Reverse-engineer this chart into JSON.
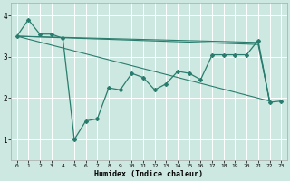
{
  "xlabel": "Humidex (Indice chaleur)",
  "bg_color": "#cce8e0",
  "line_color": "#2a7d6e",
  "grid_color": "#ffffff",
  "xlim": [
    -0.5,
    23.5
  ],
  "ylim": [
    0.5,
    4.3
  ],
  "yticks": [
    1,
    2,
    3,
    4
  ],
  "xticks": [
    0,
    1,
    2,
    3,
    4,
    5,
    6,
    7,
    8,
    9,
    10,
    11,
    12,
    13,
    14,
    15,
    16,
    17,
    18,
    19,
    20,
    21,
    22,
    23
  ],
  "series": [
    {
      "x": [
        0,
        1,
        2,
        3,
        4,
        5,
        6,
        7,
        8,
        9,
        10,
        11,
        12,
        13,
        14,
        15,
        16,
        17,
        18,
        19,
        20,
        21,
        22,
        23
      ],
      "y": [
        3.5,
        3.9,
        3.55,
        3.55,
        3.45,
        1.0,
        1.45,
        1.5,
        2.25,
        2.2,
        2.6,
        2.5,
        2.2,
        2.35,
        2.65,
        2.6,
        2.45,
        3.05,
        3.05,
        3.05,
        3.05,
        3.4,
        1.9,
        1.93
      ],
      "has_markers": true
    },
    {
      "x": [
        0,
        21,
        22
      ],
      "y": [
        3.5,
        3.35,
        1.93
      ],
      "has_markers": false
    },
    {
      "x": [
        0,
        21,
        22
      ],
      "y": [
        3.5,
        3.3,
        1.93
      ],
      "has_markers": false
    },
    {
      "x": [
        0,
        22
      ],
      "y": [
        3.5,
        1.93
      ],
      "has_markers": false
    }
  ]
}
